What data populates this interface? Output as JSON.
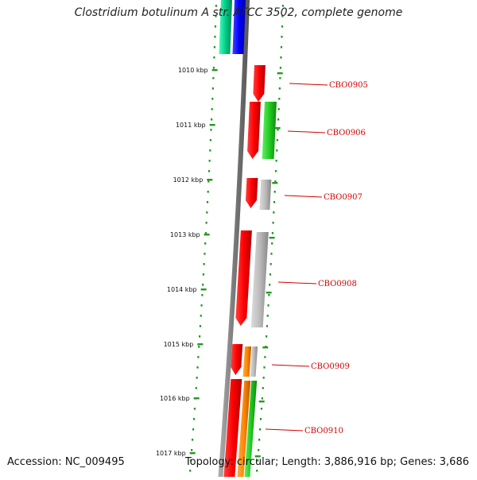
{
  "title": "Clostridium botulinum A str. ATCC 3502, complete genome",
  "footer": {
    "accession": "Accession: NC_009495",
    "topology": "Topology: circular; Length: 3,886,916 bp; Genes: 3,686"
  },
  "colors": {
    "backbone": "#808080",
    "cds_red": "#ff0000",
    "green": "#22cc22",
    "grey": "#b8b8b8",
    "orange": "#ff8800",
    "blue": "#0000ff",
    "teal": "#00cc88",
    "dots": "#229922",
    "label_red": "#d40000"
  },
  "tick_labels": [
    "1010 kbp",
    "1011 kbp",
    "1012 kbp",
    "1013 kbp",
    "1014 kbp",
    "1015 kbp",
    "1016 kbp",
    "1017 kbp"
  ],
  "gene_labels": [
    "CBO0905",
    "CBO0906",
    "CBO0907",
    "CBO0908",
    "CBO0909",
    "CBO0910"
  ]
}
